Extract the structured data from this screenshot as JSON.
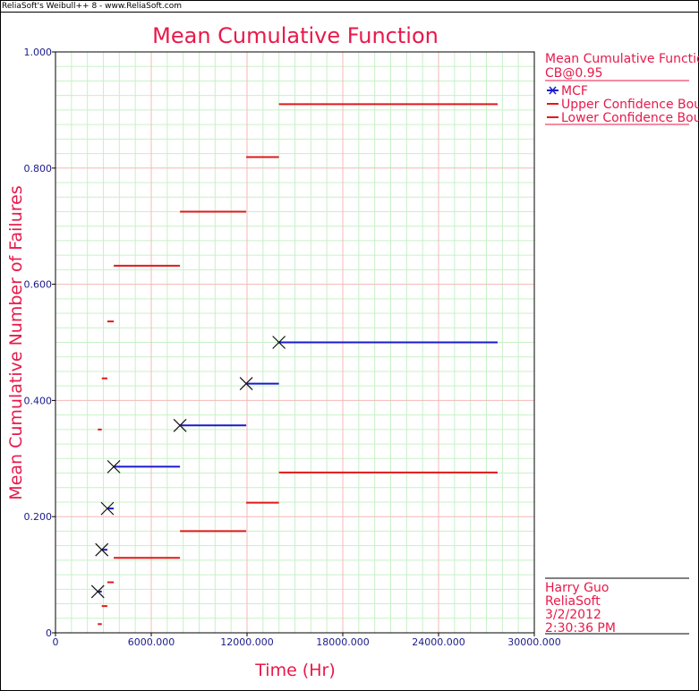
{
  "window": {
    "app_title": "ReliaSoft's Weibull++ 8 - www.ReliaSoft.com"
  },
  "chart_data": {
    "type": "line",
    "title": "Mean Cumulative Function",
    "xlabel": "Time (Hr)",
    "ylabel": "Mean Cumulative Number of Failures",
    "xlim": [
      0,
      30000
    ],
    "ylim": [
      0,
      1
    ],
    "x_ticks": [
      {
        "value": 0,
        "label": "0"
      },
      {
        "value": 6000,
        "label": "6000.000"
      },
      {
        "value": 12000,
        "label": "12000.000"
      },
      {
        "value": 18000,
        "label": "18000.000"
      },
      {
        "value": 24000,
        "label": "24000.000"
      },
      {
        "value": 30000,
        "label": "30000.000"
      }
    ],
    "y_ticks": [
      {
        "value": 0,
        "label": "0"
      },
      {
        "value": 0.2,
        "label": "0.200"
      },
      {
        "value": 0.4,
        "label": "0.400"
      },
      {
        "value": 0.6,
        "label": "0.600"
      },
      {
        "value": 0.8,
        "label": "0.800"
      },
      {
        "value": 1.0,
        "label": "1.000"
      }
    ],
    "grid": true,
    "legend_position": "right",
    "colors": {
      "mcf": "#1a1acd",
      "bounds": "#e11919",
      "text": "#e8194a",
      "ticks": "#1a1a8a",
      "major_grid": "#f4b8b8",
      "minor_grid": "#c8f0c8"
    },
    "series": [
      {
        "name": "MCF",
        "marker": "x",
        "points": [
          {
            "x": 2650,
            "y": 0.071
          },
          {
            "x": 2900,
            "y": 0.143
          },
          {
            "x": 3250,
            "y": 0.214
          },
          {
            "x": 3650,
            "y": 0.286
          },
          {
            "x": 7800,
            "y": 0.357
          },
          {
            "x": 11950,
            "y": 0.429
          },
          {
            "x": 14000,
            "y": 0.5
          }
        ],
        "segments": [
          {
            "x0": 2650,
            "x1": 2900,
            "y": 0.071
          },
          {
            "x0": 2900,
            "x1": 3250,
            "y": 0.143
          },
          {
            "x0": 3250,
            "x1": 3650,
            "y": 0.214
          },
          {
            "x0": 3650,
            "x1": 7800,
            "y": 0.286
          },
          {
            "x0": 7800,
            "x1": 11950,
            "y": 0.357
          },
          {
            "x0": 11950,
            "x1": 14000,
            "y": 0.429
          },
          {
            "x0": 14000,
            "x1": 27700,
            "y": 0.5
          }
        ]
      },
      {
        "name": "Upper Confidence Bou",
        "segments": [
          {
            "x0": 2650,
            "x1": 2900,
            "y": 0.35
          },
          {
            "x0": 2900,
            "x1": 3250,
            "y": 0.438
          },
          {
            "x0": 3250,
            "x1": 3650,
            "y": 0.536
          },
          {
            "x0": 3650,
            "x1": 7800,
            "y": 0.632
          },
          {
            "x0": 7800,
            "x1": 11950,
            "y": 0.725
          },
          {
            "x0": 11950,
            "x1": 14000,
            "y": 0.819
          },
          {
            "x0": 14000,
            "x1": 27700,
            "y": 0.91
          }
        ]
      },
      {
        "name": "Lower Confidence Bou",
        "segments": [
          {
            "x0": 2650,
            "x1": 2900,
            "y": 0.015
          },
          {
            "x0": 2900,
            "x1": 3250,
            "y": 0.046
          },
          {
            "x0": 3250,
            "x1": 3650,
            "y": 0.087
          },
          {
            "x0": 3650,
            "x1": 7800,
            "y": 0.129
          },
          {
            "x0": 7800,
            "x1": 11950,
            "y": 0.175
          },
          {
            "x0": 11950,
            "x1": 14000,
            "y": 0.224
          },
          {
            "x0": 14000,
            "x1": 27700,
            "y": 0.276
          }
        ]
      }
    ]
  },
  "legend": {
    "title": "Mean Cumulative Functio",
    "subtitle": "CB@0.95",
    "items": [
      {
        "label": "MCF",
        "icon": "x-marker-line",
        "color": "#1a1acd"
      },
      {
        "label": "Upper Confidence Bou",
        "icon": "line",
        "color": "#e11919"
      },
      {
        "label": "Lower Confidence Bou",
        "icon": "line",
        "color": "#e11919"
      }
    ]
  },
  "info": {
    "user": "Harry Guo",
    "company": "ReliaSoft",
    "date": "3/2/2012",
    "time": "2:30:36 PM"
  }
}
